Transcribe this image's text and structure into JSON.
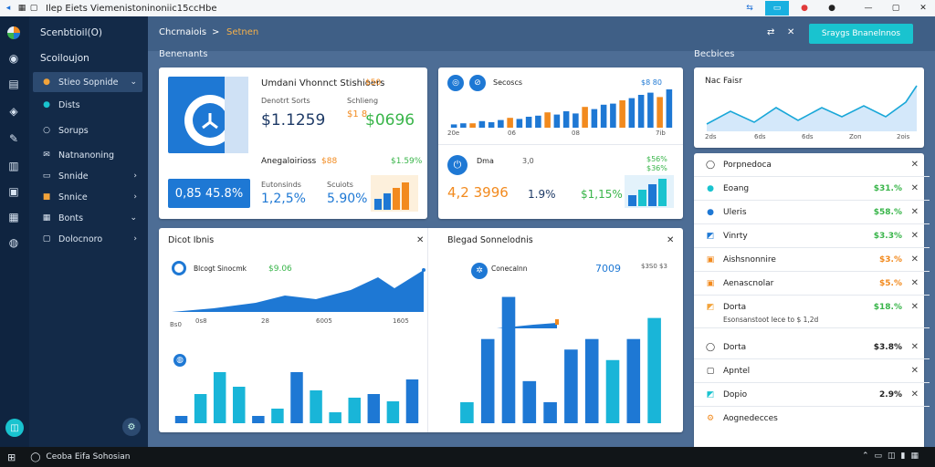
{
  "titlebar": {
    "title": "Ilep Eiets Viemenistoninoniic15ccHbe",
    "back_icon": "arrow-left-icon"
  },
  "sidebar": {
    "title": "Scenbtioil(O)",
    "subtitle": "Scoiloujon",
    "items": [
      {
        "label": "Stieo Sopnide",
        "active": true
      },
      {
        "label": "Dists"
      },
      {
        "label": "Sorups"
      },
      {
        "label": "Natnanoning"
      },
      {
        "label": "Snnide"
      },
      {
        "label": "Snnice"
      },
      {
        "label": "Bonts"
      },
      {
        "label": "Dolocnoro"
      }
    ]
  },
  "topbar": {
    "crumb1": "Chcrnaiois",
    "crumb_sep": ">",
    "crumb2": "Setnen",
    "cta": "Sraygs Bnanelnnos"
  },
  "sections": {
    "left": "Benenants",
    "right": "Becbices"
  },
  "summary": {
    "title": "Umdani Vhonnct Stishioers",
    "title_val": "$50",
    "l1": "Denotrt Sorts",
    "l1v": "$1.1259",
    "l2": "Schlieng",
    "l2v": "$1 8",
    "l2big": "$0696",
    "l3": "Anegaloirioss",
    "l3v": "$88",
    "big_badge": "0,85 45.8%",
    "m1": "Eutonsinds",
    "m1v": "1,2,5%",
    "m2": "Scuiots",
    "m2v": "5.90%",
    "m3": "$1.59%"
  },
  "barsCard": {
    "label": "Secoscs",
    "val1": "$8 80",
    "val2": "3,0",
    "amount": "4,2 3996",
    "p1": "1.9%",
    "p2": "$1,15%",
    "top_right": "$56%",
    "top_right2": "$36%",
    "axis": [
      "20e",
      "06",
      "08",
      "",
      "7ib"
    ],
    "label2": "Dma"
  },
  "chart": {
    "bar_top": [
      3,
      4,
      4,
      6,
      5,
      7,
      9,
      8,
      10,
      11,
      14,
      12,
      15,
      13,
      19,
      17,
      21,
      22,
      25,
      27,
      30,
      32,
      28,
      35
    ]
  },
  "trend": {
    "title": "Nac Faisr",
    "axis": [
      "2ds",
      "6ds",
      "6ds",
      "Zon",
      "2ois"
    ]
  },
  "panel": [
    {
      "label": "Porpnedoca",
      "value": "",
      "icon": "circle-outline-icon"
    },
    {
      "label": "Eoang",
      "value": "$31.%",
      "icon": "teal-dot-icon"
    },
    {
      "label": "Uleris",
      "value": "$58.%",
      "icon": "blue-dot-icon"
    },
    {
      "label": "Vinrty",
      "value": "$3.3%",
      "icon": "chart-icon"
    },
    {
      "label": "Aishsnonnire",
      "value": "$3.%",
      "icon": "orange-square-icon"
    },
    {
      "label": "Aenascnolar",
      "value": "$5.%",
      "icon": "orange-square-icon"
    },
    {
      "label": "Dorta",
      "value": "$18.%",
      "icon": "chart-icon"
    },
    {
      "label": "Dorta",
      "value": "$3.8%",
      "icon": "circle-icon"
    },
    {
      "label": "Apntel",
      "value": "",
      "icon": "square-icon"
    },
    {
      "label": "Dopio",
      "value": "2.9%",
      "icon": "chart-icon"
    },
    {
      "label": "Aognedecces",
      "value": "",
      "icon": "gear-icon"
    }
  ],
  "panel_note": "Esonsanstoot Iece to $ 1,2d",
  "lineCard": {
    "title": "Dicot Ibnis",
    "label": "Blcogt Sinocmk",
    "val": "$9.06",
    "axis": [
      "Bs0",
      "0s8",
      "28",
      "6005",
      "1605"
    ]
  },
  "lineCard2": {
    "title": "Blegad Sonnelodnis",
    "label": "Conecalnn",
    "val": "7009",
    "val2": "$3S0 $3"
  },
  "barsBottom": {
    "values": [
      2,
      8,
      14,
      10,
      2,
      4,
      14,
      9,
      3,
      7,
      8,
      6,
      12
    ],
    "highlight": "#1e78d4"
  },
  "barsBottom2": {
    "values": [
      2,
      8,
      12,
      4,
      2,
      7,
      8,
      6,
      8,
      10
    ]
  },
  "taskbar": {
    "label": "Ceoba Eifa Sohosian"
  },
  "colors": {
    "accent": "#19c3cf",
    "primary": "#1e78d4",
    "orange": "#f28a1e",
    "green": "#39b54a",
    "sidebar": "#132a48"
  }
}
